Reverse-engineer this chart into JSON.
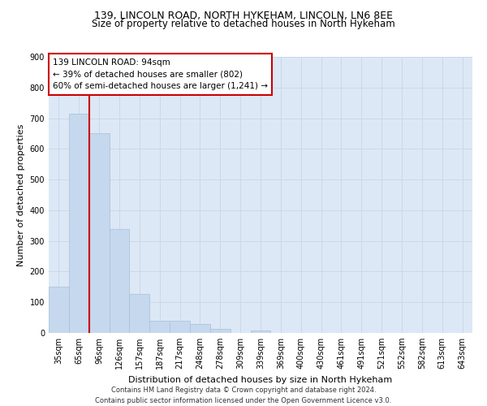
{
  "title_line1": "139, LINCOLN ROAD, NORTH HYKEHAM, LINCOLN, LN6 8EE",
  "title_line2": "Size of property relative to detached houses in North Hykeham",
  "xlabel": "Distribution of detached houses by size in North Hykeham",
  "ylabel": "Number of detached properties",
  "bin_labels": [
    "35sqm",
    "65sqm",
    "96sqm",
    "126sqm",
    "157sqm",
    "187sqm",
    "217sqm",
    "248sqm",
    "278sqm",
    "309sqm",
    "339sqm",
    "369sqm",
    "400sqm",
    "430sqm",
    "461sqm",
    "491sqm",
    "521sqm",
    "552sqm",
    "582sqm",
    "613sqm",
    "643sqm"
  ],
  "bar_values": [
    150,
    715,
    650,
    340,
    127,
    40,
    40,
    28,
    12,
    0,
    8,
    0,
    0,
    0,
    0,
    0,
    0,
    0,
    0,
    0,
    0
  ],
  "bar_color": "#c5d8ed",
  "bar_edge_color": "#a8c0d8",
  "vline_color": "#cc0000",
  "annotation_text": "139 LINCOLN ROAD: 94sqm\n← 39% of detached houses are smaller (802)\n60% of semi-detached houses are larger (1,241) →",
  "annotation_box_color": "#ffffff",
  "annotation_box_edge_color": "#cc0000",
  "ylim": [
    0,
    900
  ],
  "yticks": [
    0,
    100,
    200,
    300,
    400,
    500,
    600,
    700,
    800,
    900
  ],
  "grid_color": "#ccd8e8",
  "background_color": "#dce8f5",
  "footer_line1": "Contains HM Land Registry data © Crown copyright and database right 2024.",
  "footer_line2": "Contains public sector information licensed under the Open Government Licence v3.0.",
  "title_fontsize": 9,
  "subtitle_fontsize": 8.5,
  "axis_label_fontsize": 8,
  "tick_fontsize": 7,
  "annotation_fontsize": 7.5,
  "footer_fontsize": 6
}
